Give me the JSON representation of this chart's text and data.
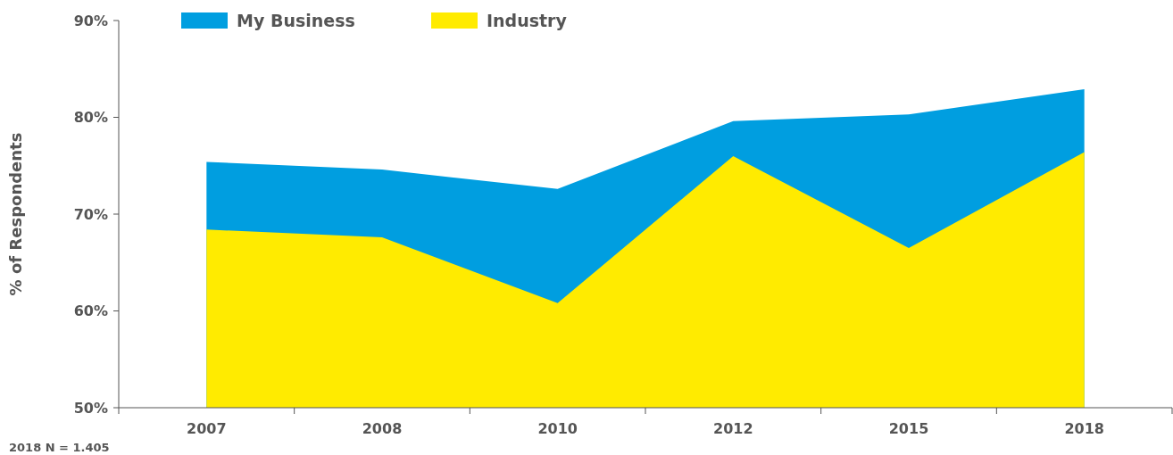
{
  "chart_data": {
    "type": "area",
    "ylabel": "% of Respondents",
    "categories": [
      "2007",
      "2008",
      "2010",
      "2012",
      "2015",
      "2018"
    ],
    "series": [
      {
        "name": "My Business",
        "color": "#009ee0",
        "values": [
          75.4,
          74.6,
          72.6,
          79.6,
          80.3,
          82.9
        ]
      },
      {
        "name": "Industry",
        "color": "#ffeb00",
        "values": [
          68.4,
          67.6,
          60.8,
          76.0,
          66.5,
          76.4
        ]
      }
    ],
    "ylim": [
      50,
      90
    ],
    "yticks": [
      {
        "value": 50,
        "label": "50%"
      },
      {
        "value": 60,
        "label": "60%"
      },
      {
        "value": 70,
        "label": "70%"
      },
      {
        "value": 80,
        "label": "80%"
      },
      {
        "value": 90,
        "label": "90%"
      }
    ],
    "legend": "top left",
    "grid": false,
    "annotations": [
      "2018 N = 1.405"
    ]
  }
}
